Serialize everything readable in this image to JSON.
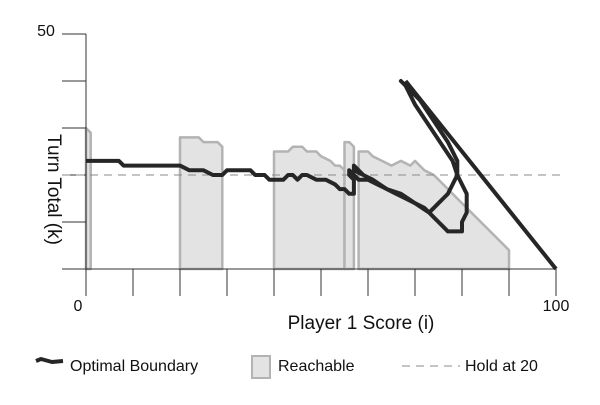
{
  "chart_data": {
    "type": "line",
    "xlabel": "Player 1 Score (i)",
    "ylabel": "Turn Total (k)",
    "xlim": [
      0,
      100
    ],
    "ylim": [
      0,
      50
    ],
    "x_ticks_labeled": [
      0,
      100
    ],
    "y_ticks_labeled": [
      50
    ],
    "grid": false,
    "legend_position": "bottom",
    "colors": {
      "boundary": "#262626",
      "reachable_fill": "#e3e3e3",
      "reachable_stroke": "#b3b3b3",
      "hold": "#8a8a8a"
    },
    "hold_line": {
      "name": "Hold at 20",
      "k": 20
    },
    "series": [
      {
        "name": "Optimal Boundary",
        "points": [
          [
            0,
            23
          ],
          [
            7,
            23
          ],
          [
            8,
            22
          ],
          [
            20,
            22
          ],
          [
            22,
            21
          ],
          [
            25,
            21
          ],
          [
            27,
            20
          ],
          [
            29,
            20
          ],
          [
            30,
            21
          ],
          [
            35,
            21
          ],
          [
            36,
            20
          ],
          [
            38,
            20
          ],
          [
            39,
            19
          ],
          [
            42,
            19
          ],
          [
            43,
            20
          ],
          [
            44,
            20
          ],
          [
            45,
            19
          ],
          [
            46,
            20
          ],
          [
            47,
            20
          ],
          [
            49,
            19
          ],
          [
            51,
            19
          ],
          [
            53,
            18
          ],
          [
            54,
            17
          ],
          [
            55,
            17
          ],
          [
            56,
            16
          ],
          [
            57,
            16
          ],
          [
            57,
            19
          ],
          [
            56,
            20
          ],
          [
            56,
            21
          ],
          [
            58,
            19
          ],
          [
            60,
            19
          ],
          [
            62,
            18
          ],
          [
            64,
            17
          ],
          [
            66,
            16
          ],
          [
            68,
            15
          ],
          [
            70,
            14
          ],
          [
            72,
            13
          ],
          [
            73,
            12
          ],
          [
            74,
            11
          ],
          [
            75,
            10
          ],
          [
            76,
            9
          ],
          [
            77,
            8
          ],
          [
            78,
            8
          ],
          [
            80,
            8
          ],
          [
            80,
            10
          ],
          [
            81,
            12
          ],
          [
            81,
            16
          ],
          [
            80,
            18
          ],
          [
            79,
            20
          ],
          [
            78,
            23
          ],
          [
            76,
            26
          ],
          [
            74,
            29
          ],
          [
            72,
            32
          ],
          [
            70,
            35
          ],
          [
            69,
            37
          ],
          [
            68,
            39
          ],
          [
            67,
            40
          ],
          [
            69,
            38
          ],
          [
            71,
            36
          ],
          [
            73,
            33
          ],
          [
            75,
            30
          ],
          [
            77,
            27
          ],
          [
            78,
            25
          ],
          [
            79,
            23
          ],
          [
            79,
            20
          ],
          [
            78,
            18
          ],
          [
            77,
            16
          ],
          [
            76,
            15
          ],
          [
            75,
            14
          ],
          [
            74,
            13
          ],
          [
            73,
            12
          ],
          [
            70,
            14
          ],
          [
            67,
            16
          ],
          [
            64,
            17
          ],
          [
            61,
            19
          ],
          [
            59,
            20
          ],
          [
            57,
            21
          ],
          [
            57,
            22
          ],
          [
            59,
            20
          ]
        ]
      },
      {
        "name": "Optimal Boundary",
        "points": [
          [
            68,
            40
          ],
          [
            100,
            0
          ]
        ]
      }
    ],
    "reachable": {
      "name": "Reachable",
      "regions": [
        [
          [
            0,
            0
          ],
          [
            1,
            0
          ],
          [
            1,
            29
          ],
          [
            0,
            30
          ]
        ],
        [
          [
            20,
            0
          ],
          [
            29,
            0
          ],
          [
            29,
            26
          ],
          [
            28,
            27
          ],
          [
            25,
            27
          ],
          [
            24,
            28
          ],
          [
            20,
            28
          ]
        ],
        [
          [
            40,
            0
          ],
          [
            55,
            0
          ],
          [
            55,
            21
          ],
          [
            54,
            22
          ],
          [
            53,
            22
          ],
          [
            52,
            23
          ],
          [
            50,
            24
          ],
          [
            49,
            25
          ],
          [
            47,
            25
          ],
          [
            46,
            26
          ],
          [
            44,
            26
          ],
          [
            43,
            25
          ],
          [
            40,
            25
          ]
        ],
        [
          [
            55,
            0
          ],
          [
            57,
            0
          ],
          [
            57,
            26
          ],
          [
            56,
            27
          ],
          [
            55,
            27
          ]
        ],
        [
          [
            58,
            0
          ],
          [
            90,
            0
          ],
          [
            90,
            4
          ],
          [
            88,
            6
          ],
          [
            86,
            8
          ],
          [
            84,
            10
          ],
          [
            82,
            12
          ],
          [
            80,
            14
          ],
          [
            78,
            16
          ],
          [
            76,
            18
          ],
          [
            74,
            20
          ],
          [
            72,
            21
          ],
          [
            71,
            22
          ],
          [
            70,
            23
          ],
          [
            69,
            22
          ],
          [
            67,
            23
          ],
          [
            65,
            22
          ],
          [
            63,
            23
          ],
          [
            61,
            24
          ],
          [
            60,
            25
          ],
          [
            58,
            25
          ]
        ]
      ]
    },
    "legend": {
      "boundary": "Optimal Boundary",
      "reachable": "Reachable",
      "hold": "Hold at 20"
    },
    "labels": {
      "x_min": "0",
      "x_max": "100",
      "y_max": "50"
    }
  }
}
